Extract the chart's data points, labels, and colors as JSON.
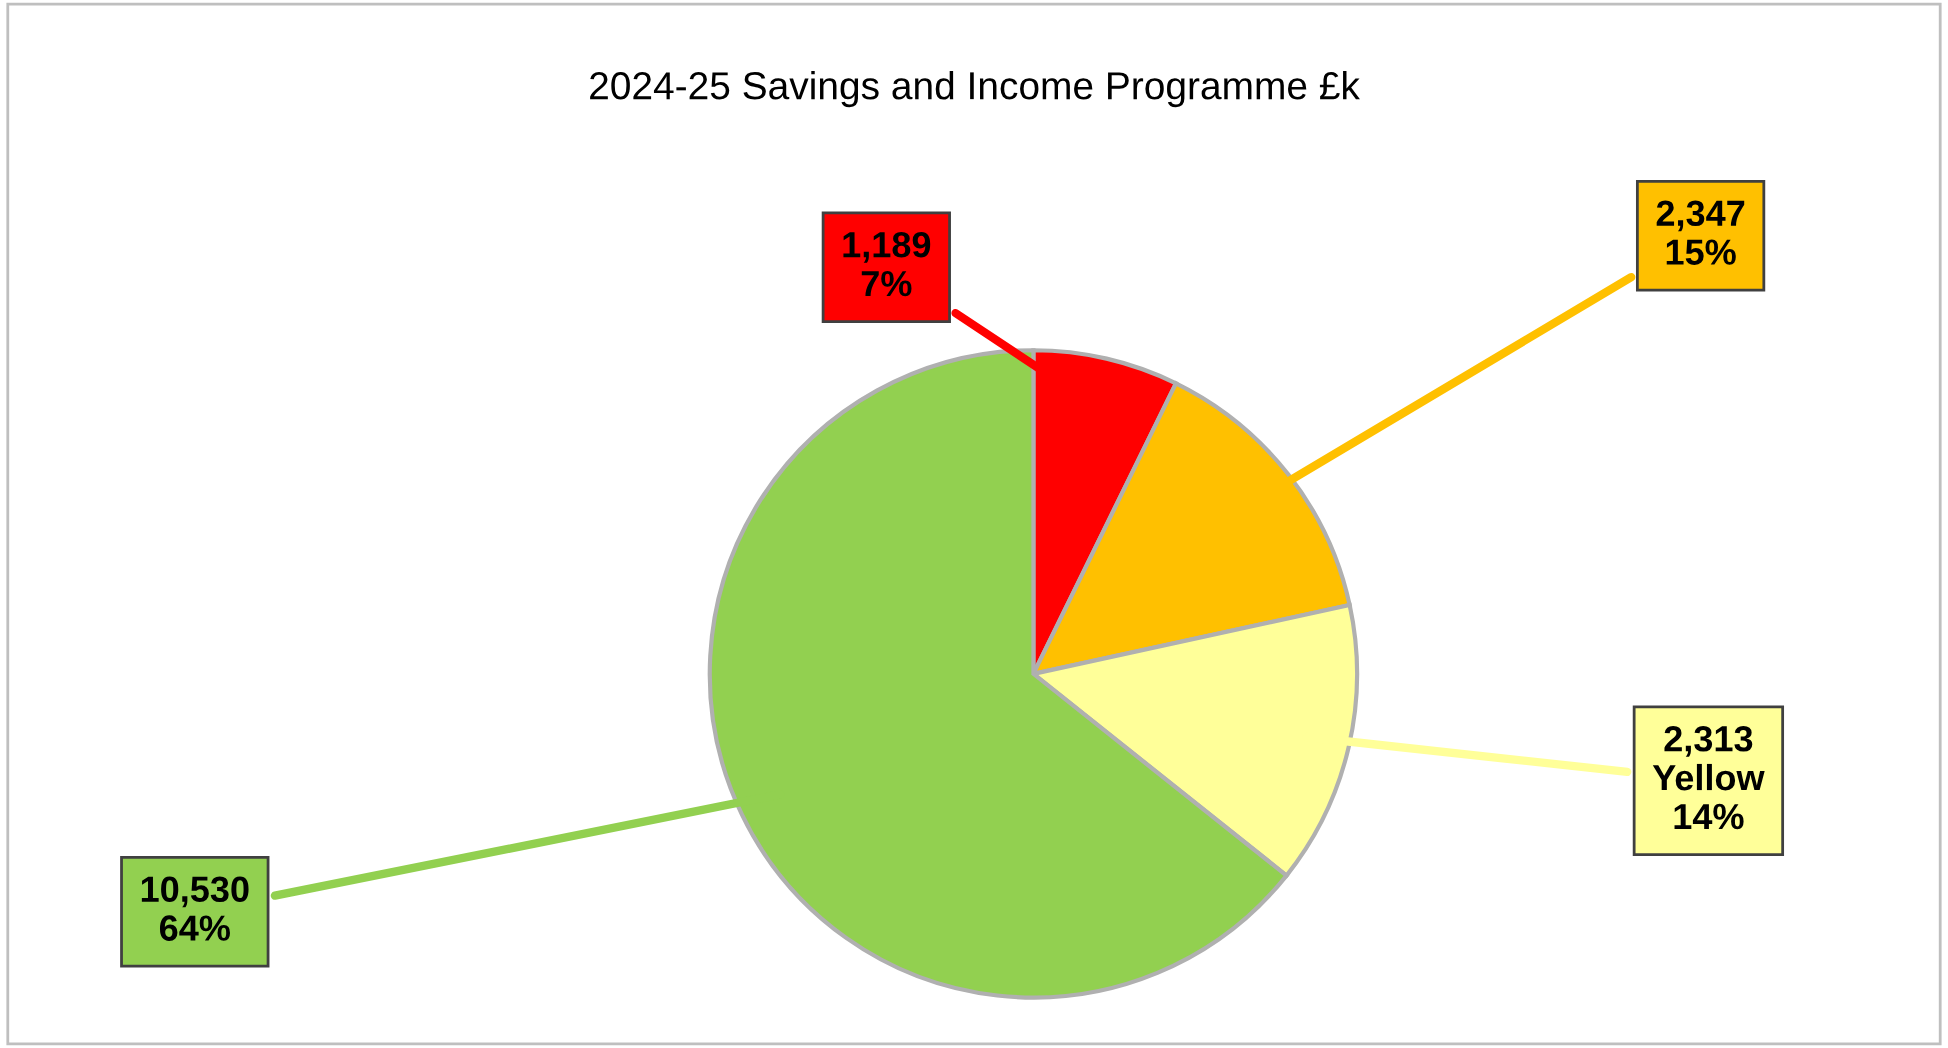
{
  "chart_data": {
    "type": "pie",
    "title": "2024-25 Savings and Income Programme £k",
    "categories": [
      null,
      null,
      "Yellow",
      null
    ],
    "values": [
      1189,
      2347,
      2313,
      10530
    ],
    "colors": [
      "#ff0000",
      "#ffc000",
      "#ffff99",
      "#92d050"
    ],
    "value_labels": [
      "1,189\n7%",
      "2,347\n15%",
      "2,313\n14%",
      "10,530\n64%"
    ],
    "legend": false
  }
}
